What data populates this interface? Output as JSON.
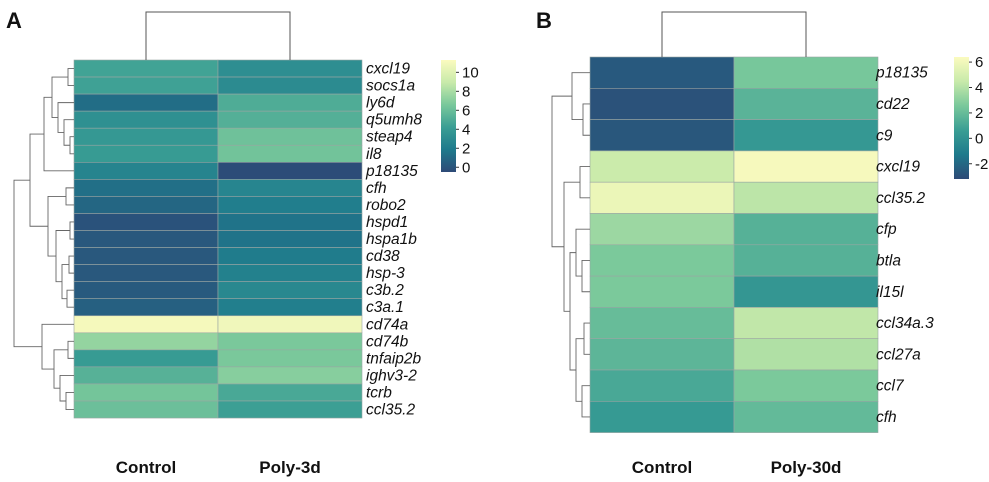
{
  "chart_data": [
    {
      "type": "heatmap",
      "panel_label": "A",
      "columns": [
        "Control",
        "Poly-3d"
      ],
      "rows": [
        "cxcl19",
        "socs1a",
        "ly6d",
        "q5umh8",
        "steap4",
        "il8",
        "p18135",
        "cfh",
        "robo2",
        "hspd1",
        "hspa1b",
        "cd38",
        "hsp-3",
        "c3b.2",
        "c3a.1",
        "cd74a",
        "cd74b",
        "tnfaip2b",
        "ighv3-2",
        "tcrb",
        "ccl35.2"
      ],
      "values": [
        [
          4.5,
          3.2
        ],
        [
          4.4,
          3.0
        ],
        [
          1.2,
          5.0
        ],
        [
          3.3,
          5.2
        ],
        [
          3.8,
          6.2
        ],
        [
          4.0,
          6.3
        ],
        [
          2.5,
          -0.4
        ],
        [
          1.3,
          2.6
        ],
        [
          0.9,
          2.1
        ],
        [
          -0.1,
          1.5
        ],
        [
          0.2,
          1.5
        ],
        [
          0.2,
          2.0
        ],
        [
          0.2,
          2.3
        ],
        [
          0.3,
          2.8
        ],
        [
          0.6,
          2.2
        ],
        [
          11.0,
          10.8
        ],
        [
          7.4,
          6.6
        ],
        [
          4.0,
          6.6
        ],
        [
          5.3,
          7.0
        ],
        [
          6.4,
          4.8
        ],
        [
          6.1,
          4.3
        ]
      ],
      "colorbar": {
        "min": -0.5,
        "max": 11.3,
        "ticks": [
          10,
          8,
          6,
          4,
          2,
          0
        ]
      },
      "colormap": [
        "#2d4a77",
        "#1e7a8c",
        "#3a9e94",
        "#79c89b",
        "#c8eaaa",
        "#fbfbbf"
      ]
    },
    {
      "type": "heatmap",
      "panel_label": "B",
      "columns": [
        "Control",
        "Poly-30d"
      ],
      "rows": [
        "p18135",
        "cd22",
        "c9",
        "cxcl19",
        "ccl35.2",
        "cfp",
        "btla",
        "il15l",
        "ccl34a.3",
        "ccl27a",
        "ccl7",
        "cfh"
      ],
      "values": [
        [
          -2.6,
          2.5
        ],
        [
          -2.9,
          1.6
        ],
        [
          -2.7,
          0.3
        ],
        [
          4.6,
          6.2
        ],
        [
          5.8,
          4.2
        ],
        [
          3.4,
          1.5
        ],
        [
          2.6,
          1.5
        ],
        [
          2.6,
          0.2
        ],
        [
          2.0,
          4.3
        ],
        [
          1.7,
          3.9
        ],
        [
          1.1,
          2.6
        ],
        [
          0.4,
          1.9
        ]
      ],
      "colorbar": {
        "min": -3.2,
        "max": 6.4,
        "ticks": [
          6,
          4,
          2,
          0,
          -2
        ]
      },
      "colormap": [
        "#2d4a77",
        "#1e7a8c",
        "#3a9e94",
        "#79c89b",
        "#c8eaaa",
        "#fbfbbf"
      ]
    }
  ]
}
